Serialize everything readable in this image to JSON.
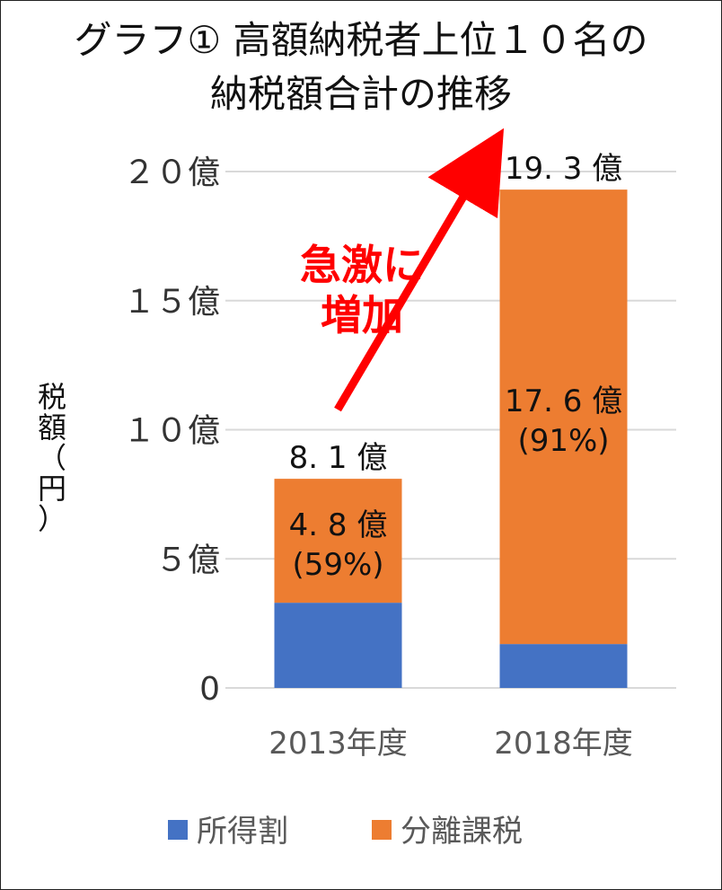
{
  "chart_data": {
    "type": "bar",
    "stacked": true,
    "title_line1": "グラフ① 高額納税者上位１０名の",
    "title_line2": "納税額合計の推移",
    "ylabel_chars": [
      "税",
      "額",
      "（",
      "円",
      "）"
    ],
    "categories": [
      "2013年度",
      "2018年度"
    ],
    "series": [
      {
        "name": "所得割",
        "values": [
          3.3,
          1.7
        ],
        "color": "#4472c4"
      },
      {
        "name": "分離課税",
        "values": [
          4.8,
          17.6
        ],
        "color": "#ed7d31"
      }
    ],
    "totals": [
      8.1,
      19.3
    ],
    "total_labels": [
      "8. 1 億",
      "19. 3 億"
    ],
    "segment_labels": [
      {
        "line1": "4. 8 億",
        "line2": "(59%)"
      },
      {
        "line1": "17. 6 億",
        "line2": "(91%)"
      }
    ],
    "ylim": [
      0,
      20
    ],
    "yticks": [
      0,
      5,
      10,
      15,
      20
    ],
    "ytick_labels": [
      "0",
      "５億",
      "１０億",
      "１５億",
      "２０億"
    ],
    "grid": true,
    "legend_position": "bottom",
    "annotation_line1": "急激に",
    "annotation_line2": "増加",
    "accent_color": "#ff0000"
  }
}
